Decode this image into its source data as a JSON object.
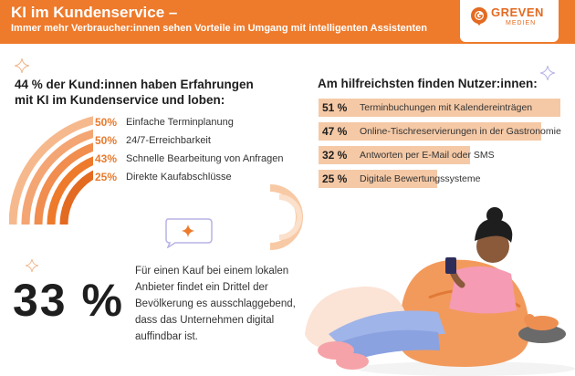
{
  "header": {
    "title": "KI im Kundenservice –",
    "subtitle": "Immer mehr Verbraucher:innen sehen Vorteile im Umgang mit intelligenten Assistenten"
  },
  "logo": {
    "name": "GREVEN",
    "sub": "MEDIEN"
  },
  "left": {
    "heading_line1": "44 % der Kund:innen haben Erfahrungen",
    "heading_line2": "mit KI im Kundenservice und loben:",
    "stats": [
      {
        "pct": "50%",
        "label": "Einfache Terminplanung"
      },
      {
        "pct": "50%",
        "label": "24/7-Erreichbarkeit"
      },
      {
        "pct": "43%",
        "label": "Schnelle Bearbeitung von Anfragen"
      },
      {
        "pct": "25%",
        "label": "Direkte Kaufabschlüsse"
      }
    ]
  },
  "right": {
    "heading": "Am hilfreichsten finden Nutzer:innen:",
    "items": [
      {
        "pct": "51 %",
        "label": "Terminbuchungen mit Kalendereinträgen",
        "value": 51
      },
      {
        "pct": "47 %",
        "label": "Online-Tischreservierungen in der Gastronomie",
        "value": 47
      },
      {
        "pct": "32 %",
        "label": "Antworten per E-Mail oder SMS",
        "value": 32
      },
      {
        "pct": "25 %",
        "label": "Digitale Bewertungssysteme",
        "value": 25
      }
    ]
  },
  "highlight": {
    "number": "33 %",
    "text": "Für einen Kauf bei einem lokalen Anbieter findet ein Drittel der Bevölkerung es ausschlaggebend, dass das Unternehmen digital auffindbar ist."
  },
  "colors": {
    "accent": "#ee7a2b",
    "bar": "#f5c9a6",
    "text": "#1e1e1e"
  }
}
